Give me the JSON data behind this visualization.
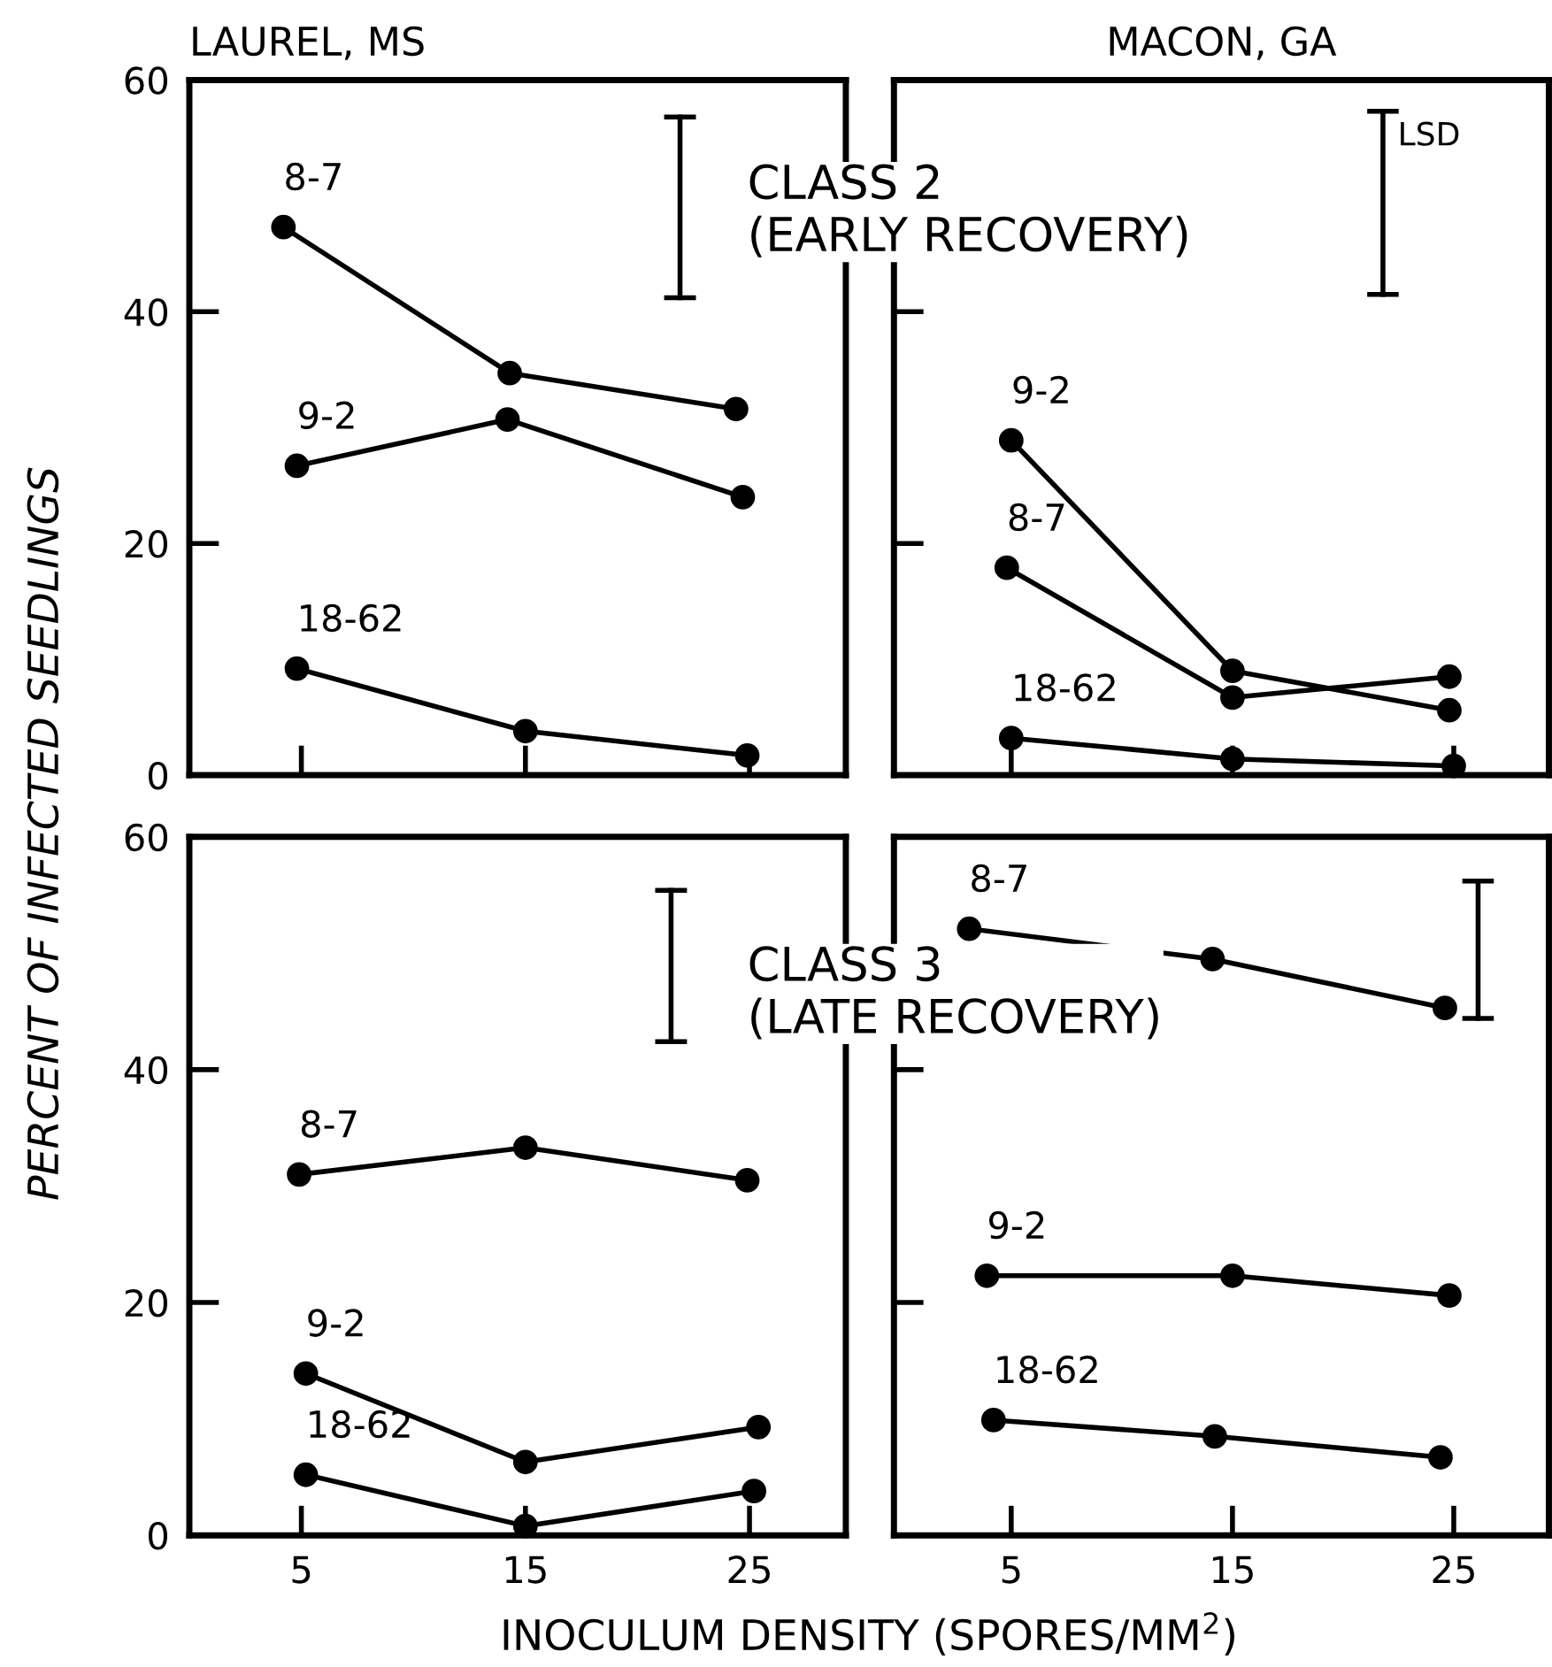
{
  "chart_data": [
    {
      "type": "line",
      "title": "LAUREL, MS",
      "ylabel": "PERCENT OF INFECTED SEEDLINGS",
      "annotations": [
        "CLASS 2\n(EARLY RECOVERY)"
      ],
      "xlim": [
        0,
        29.3
      ],
      "ylim": [
        0,
        60
      ],
      "xticks": [
        5,
        15,
        25
      ],
      "yticks": [
        0,
        20,
        40,
        60
      ],
      "tick_labels": "y",
      "marker": "circle",
      "line_style": "solid",
      "series": [
        {
          "name": "8-7",
          "color": "#000000",
          "x": [
            4.2,
            14.3,
            24.4
          ],
          "values": [
            47.3,
            34.7,
            31.6
          ]
        },
        {
          "name": "9-2",
          "color": "#000000",
          "x": [
            4.8,
            14.2,
            24.7
          ],
          "values": [
            26.7,
            30.7,
            24.0
          ]
        },
        {
          "name": "18-62",
          "color": "#000000",
          "x": [
            4.8,
            15.0,
            24.9
          ],
          "values": [
            9.2,
            3.8,
            1.7
          ]
        },
        {
          "marker": "none",
          "color": "#000000",
          "x": [
            21.9,
            21.9
          ],
          "values": [
            41.2,
            56.8
          ]
        }
      ]
    },
    {
      "type": "line",
      "title": "MACON, GA",
      "xlim": [
        -0.3,
        29.3
      ],
      "ylim": [
        0,
        60
      ],
      "xticks": [
        5,
        15,
        25
      ],
      "yticks": [
        20,
        40
      ],
      "tick_labels": false,
      "marker": "circle",
      "line_style": "solid",
      "series": [
        {
          "name": "9-2",
          "color": "#000000",
          "x": [
            5,
            15,
            24.8
          ],
          "values": [
            28.9,
            9.0,
            5.6
          ]
        },
        {
          "name": "8-7",
          "color": "#000000",
          "x": [
            4.8,
            15,
            24.8
          ],
          "values": [
            17.9,
            6.7,
            8.5
          ]
        },
        {
          "name": "18-62",
          "color": "#000000",
          "x": [
            5,
            15,
            25
          ],
          "values": [
            3.2,
            1.4,
            0.8
          ]
        },
        {
          "name": "LSD",
          "marker": "none",
          "color": "#000000",
          "x": [
            21.8,
            21.8
          ],
          "values": [
            41.5,
            57.3
          ]
        }
      ]
    },
    {
      "type": "line",
      "xlabel": "INOCULUM DENSITY (SPORES/MM$^{2}$)",
      "annotations": [
        "CLASS 3\n(LATE RECOVERY)"
      ],
      "xlim": [
        0,
        29.3
      ],
      "ylim": [
        0,
        60
      ],
      "xticks": [
        5,
        15,
        25
      ],
      "yticks": [
        0,
        20,
        40,
        60
      ],
      "marker": "circle",
      "line_style": "solid",
      "series": [
        {
          "name": "8-7",
          "color": "#000000",
          "x": [
            4.9,
            15.0,
            24.9
          ],
          "values": [
            31.0,
            33.3,
            30.5
          ]
        },
        {
          "name": "9-2",
          "color": "#000000",
          "x": [
            5.2,
            15.0,
            25.4
          ],
          "values": [
            13.9,
            6.3,
            9.3
          ]
        },
        {
          "name": "18-62",
          "color": "#000000",
          "x": [
            5.2,
            15.0,
            25.2
          ],
          "values": [
            5.2,
            0.8,
            3.8
          ]
        },
        {
          "marker": "none",
          "color": "#000000",
          "x": [
            21.5,
            21.5
          ],
          "values": [
            42.4,
            55.4
          ]
        }
      ]
    },
    {
      "type": "line",
      "xlim": [
        -0.3,
        29.3
      ],
      "ylim": [
        0,
        60
      ],
      "xticks": [
        5,
        15,
        25
      ],
      "yticks": [
        20,
        40
      ],
      "tick_labels": "x",
      "marker": "circle",
      "line_style": "solid",
      "series": [
        {
          "name": "8-7",
          "color": "#000000",
          "x": [
            3.1,
            14.1,
            24.6
          ],
          "values": [
            52.1,
            49.5,
            45.3
          ]
        },
        {
          "name": "9-2",
          "color": "#000000",
          "x": [
            3.9,
            15.0,
            24.8
          ],
          "values": [
            22.3,
            22.3,
            20.6
          ]
        },
        {
          "name": "18-62",
          "color": "#000000",
          "x": [
            4.2,
            14.2,
            24.4
          ],
          "values": [
            9.9,
            8.5,
            6.7
          ]
        },
        {
          "marker": "none",
          "color": "#000000",
          "x": [
            26.1,
            26.1
          ],
          "values": [
            44.4,
            56.2
          ]
        }
      ]
    }
  ]
}
